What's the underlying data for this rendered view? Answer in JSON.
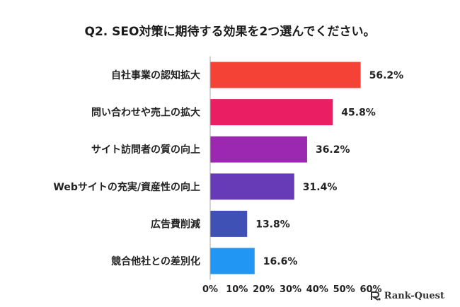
{
  "chart_data": {
    "type": "bar",
    "orientation": "horizontal",
    "title": "Q2. SEO対策に期待する効果を2つ選んでください。",
    "categories": [
      "自社事業の認知拡大",
      "問い合わせや売上の拡大",
      "サイト訪問者の質の向上",
      "Webサイトの充実/資産性の向上",
      "広告費削減",
      "競合他社との差別化"
    ],
    "values": [
      56.2,
      45.8,
      36.2,
      31.4,
      13.8,
      16.6
    ],
    "value_labels": [
      "56.2%",
      "45.8%",
      "36.2%",
      "31.4%",
      "13.8%",
      "16.6%"
    ],
    "colors": [
      "#f44336",
      "#e91e63",
      "#9c27b0",
      "#673ab7",
      "#3f51b5",
      "#2196f3"
    ],
    "xlim": [
      0,
      60
    ],
    "x_ticks": [
      0,
      10,
      20,
      30,
      40,
      50,
      60
    ],
    "x_tick_labels": [
      "0%",
      "10%",
      "20%",
      "30%",
      "40%",
      "50%",
      "60%"
    ],
    "xlabel": "",
    "ylabel": "",
    "grid": false
  },
  "brand": {
    "name": "Rank-Quest",
    "icon": "rank-quest-logo-icon",
    "color": "#333333"
  }
}
